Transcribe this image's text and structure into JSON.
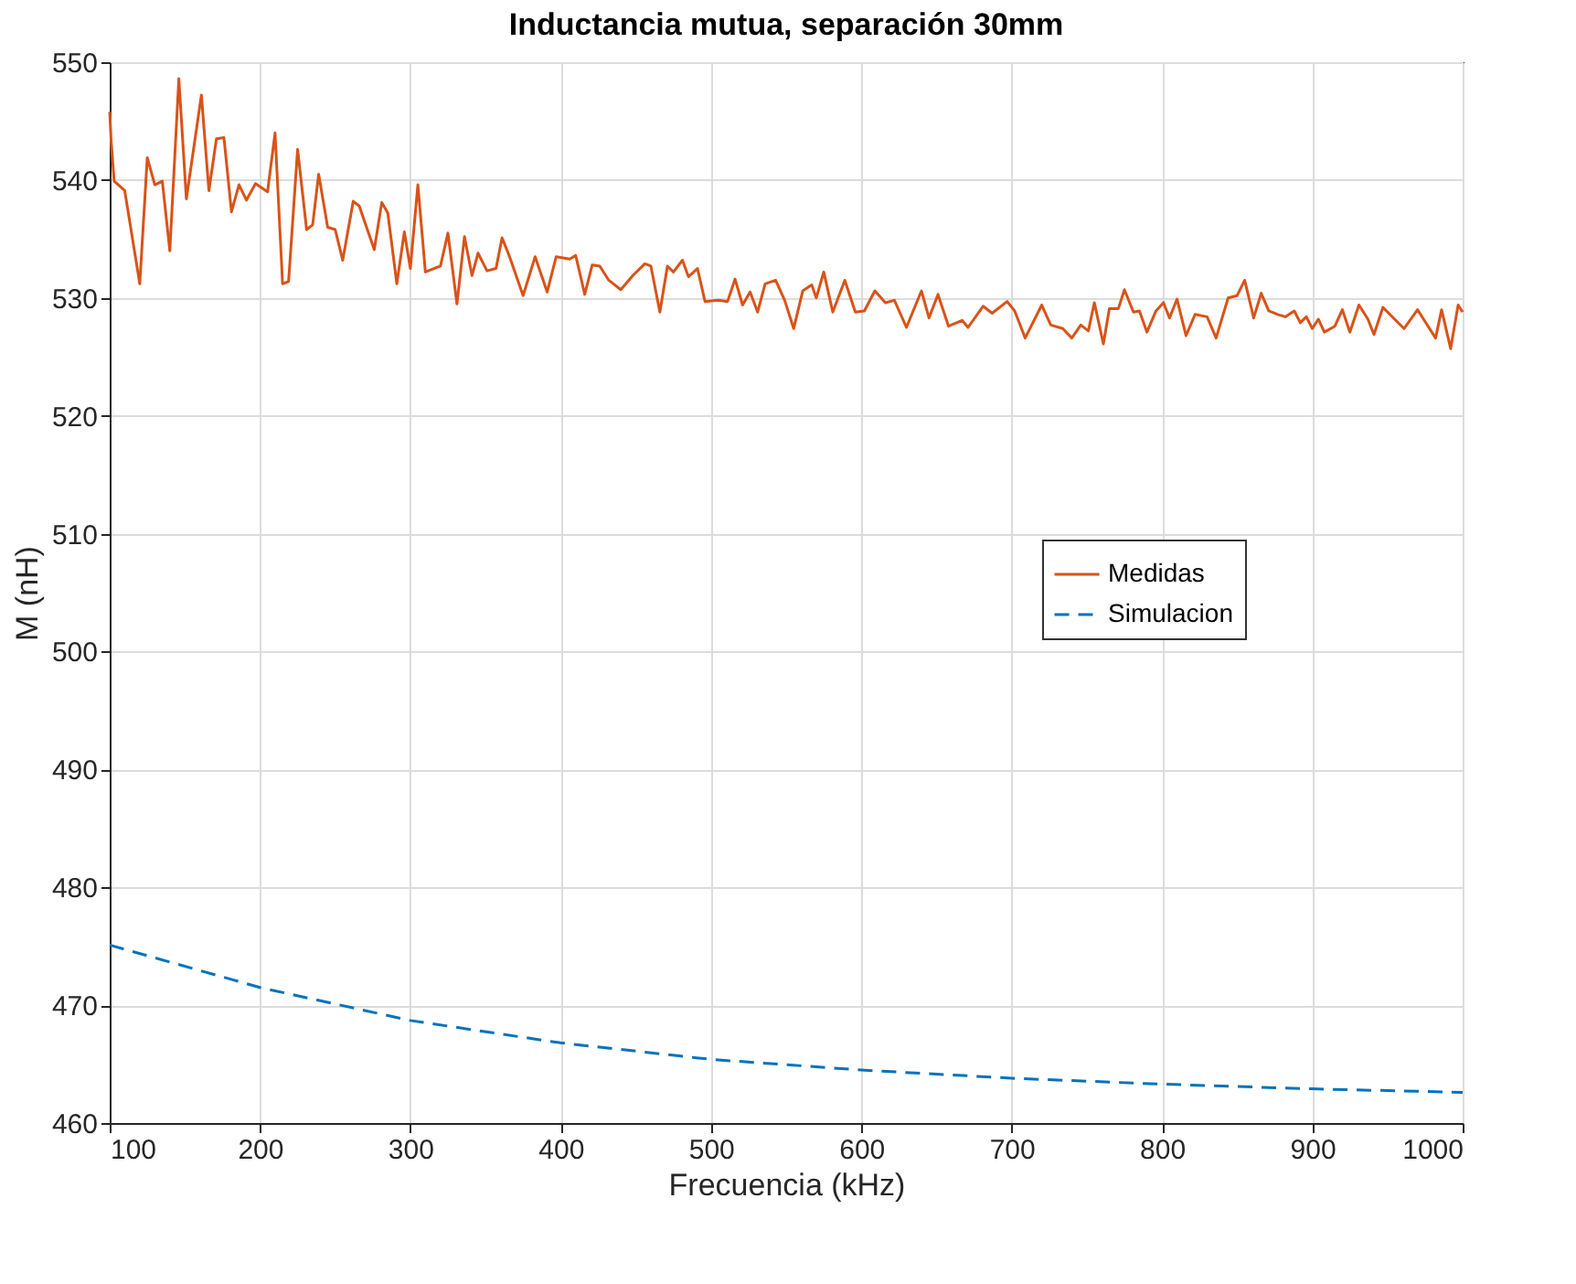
{
  "chart_data": {
    "type": "line",
    "title": "Inductancia mutua, separación 30mm",
    "xlabel": "Frecuencia (kHz)",
    "ylabel": "M (nH)",
    "xlim": [
      100,
      1000
    ],
    "xticks": [
      100,
      200,
      300,
      400,
      500,
      600,
      700,
      800,
      900,
      1000
    ],
    "ylim": [
      460,
      550
    ],
    "yticks": [
      460,
      470,
      480,
      490,
      500,
      510,
      520,
      530,
      540,
      550
    ],
    "grid": true,
    "legend": "right",
    "series": [
      {
        "name": "Medidas",
        "color": "#d95319",
        "line_style": "solid",
        "x": [
          100,
          101,
          103,
          110,
          120,
          125,
          130,
          135,
          140,
          146,
          151,
          161,
          166,
          171,
          176,
          181,
          186,
          191,
          197,
          205,
          210,
          215,
          219,
          225,
          231,
          235,
          239,
          245,
          250,
          255,
          262,
          266,
          276,
          281,
          285,
          291,
          296,
          300,
          305,
          310,
          320,
          325,
          331,
          336,
          341,
          345,
          351,
          357,
          361,
          366,
          375,
          383,
          391,
          397,
          406,
          410,
          416,
          421,
          426,
          432,
          440,
          448,
          456,
          460,
          466,
          471,
          475,
          481,
          485,
          491,
          496,
          505,
          511,
          516,
          521,
          526,
          531,
          536,
          543,
          549,
          555,
          561,
          567,
          570,
          575,
          581,
          589,
          596,
          602,
          609,
          616,
          622,
          630,
          640,
          645,
          651,
          658,
          667,
          671,
          681,
          687,
          697,
          702,
          709,
          720,
          726,
          734,
          740,
          746,
          751,
          755,
          761,
          765,
          771,
          775,
          781,
          785,
          790,
          796,
          801,
          805,
          810,
          816,
          822,
          830,
          836,
          844,
          850,
          855,
          861,
          866,
          871,
          877,
          882,
          888,
          892,
          896,
          900,
          904,
          908,
          915,
          920,
          925,
          931,
          937,
          941,
          947,
          954,
          961,
          970,
          974,
          982,
          986,
          992,
          997,
          1000
        ],
        "values": [
          545.8,
          543.2,
          539.9,
          539.1,
          531.2,
          541.9,
          539.6,
          539.9,
          534.0,
          548.6,
          538.4,
          547.2,
          539.1,
          543.5,
          543.6,
          537.3,
          539.6,
          538.3,
          539.7,
          539.0,
          544.0,
          531.2,
          531.4,
          542.6,
          535.8,
          536.2,
          540.5,
          536.0,
          535.8,
          533.2,
          538.2,
          537.8,
          534.1,
          538.1,
          537.2,
          531.2,
          535.6,
          532.5,
          539.6,
          532.2,
          532.7,
          535.5,
          529.5,
          535.2,
          531.9,
          533.8,
          532.3,
          532.5,
          535.1,
          533.5,
          530.2,
          533.5,
          530.5,
          533.5,
          533.3,
          533.6,
          530.3,
          532.8,
          532.7,
          531.5,
          530.7,
          531.9,
          532.9,
          532.7,
          528.8,
          532.7,
          532.2,
          533.2,
          531.8,
          532.5,
          529.7,
          529.8,
          529.7,
          531.6,
          529.4,
          530.5,
          528.8,
          531.2,
          531.5,
          529.8,
          527.4,
          530.6,
          531.1,
          530.0,
          532.2,
          528.8,
          531.5,
          528.8,
          528.9,
          530.6,
          529.6,
          529.8,
          527.5,
          530.6,
          528.3,
          530.3,
          527.6,
          528.1,
          527.5,
          529.3,
          528.7,
          529.7,
          528.9,
          526.6,
          529.4,
          527.7,
          527.4,
          526.6,
          527.7,
          527.2,
          529.6,
          526.1,
          529.1,
          529.1,
          530.7,
          528.8,
          528.9,
          527.1,
          528.9,
          529.6,
          528.3,
          529.9,
          526.8,
          528.6,
          528.4,
          526.6,
          530.0,
          530.2,
          531.5,
          528.3,
          530.4,
          528.9,
          528.6,
          528.4,
          528.9,
          527.9,
          528.4,
          527.4,
          528.2,
          527.1,
          527.6,
          529.0,
          527.1,
          529.4,
          528.2,
          526.9,
          529.2,
          528.3,
          527.4,
          529.0,
          528.2,
          526.6,
          529.0,
          525.7,
          529.4,
          528.8
        ]
      },
      {
        "name": "Simulacion",
        "color": "#0072bd",
        "line_style": "dashed",
        "x": [
          100,
          200,
          300,
          400,
          500,
          600,
          700,
          800,
          900,
          1000
        ],
        "values": [
          475.1,
          471.5,
          468.7,
          466.8,
          465.4,
          464.5,
          463.8,
          463.3,
          462.9,
          462.6
        ]
      }
    ]
  }
}
